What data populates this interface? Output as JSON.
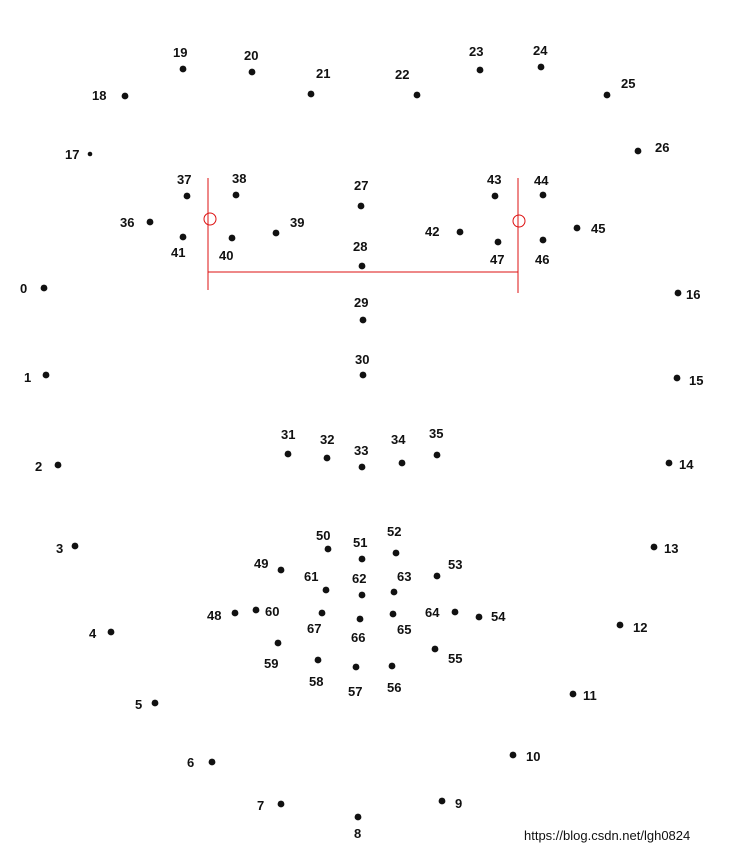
{
  "diagram": {
    "landmark_labels": [
      "0",
      "1",
      "2",
      "3",
      "4",
      "5",
      "6",
      "7",
      "8",
      "9",
      "10",
      "11",
      "12",
      "13",
      "14",
      "15",
      "16",
      "17",
      "18",
      "19",
      "20",
      "21",
      "22",
      "23",
      "24",
      "25",
      "26",
      "27",
      "28",
      "29",
      "30",
      "31",
      "32",
      "33",
      "34",
      "35",
      "36",
      "37",
      "38",
      "39",
      "40",
      "41",
      "42",
      "43",
      "44",
      "45",
      "46",
      "47",
      "48",
      "49",
      "50",
      "51",
      "52",
      "53",
      "54",
      "55",
      "56",
      "57",
      "58",
      "59",
      "60",
      "61",
      "62",
      "63",
      "64",
      "65",
      "66",
      "67"
    ],
    "watermark": "https://blog.csdn.net/lgh0824",
    "colors": {
      "point": "#111111",
      "label": "#111111",
      "guide": "#dd1111",
      "watermark": "#bbbbbb"
    }
  }
}
